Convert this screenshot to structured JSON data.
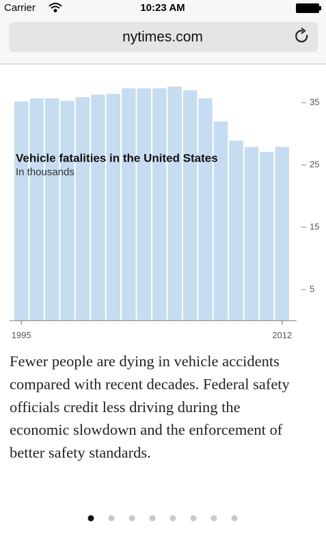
{
  "status_bar": {
    "carrier": "Carrier",
    "time": "10:23 AM"
  },
  "address_bar": {
    "url": "nytimes.com"
  },
  "chart_data": {
    "type": "bar",
    "title": "Vehicle fatalities in the United States",
    "subtitle": "In thousands",
    "categories": [
      "1995",
      null,
      null,
      null,
      null,
      null,
      null,
      null,
      null,
      null,
      null,
      null,
      null,
      null,
      null,
      null,
      null,
      "2012"
    ],
    "values": [
      35.2,
      35.7,
      35.7,
      35.3,
      35.9,
      36.3,
      36.4,
      37.3,
      37.3,
      37.3,
      37.6,
      37.0,
      35.7,
      32.0,
      28.9,
      27.9,
      27.1,
      27.9
    ],
    "color": "#c6dcf0",
    "ylim": [
      0,
      38
    ],
    "yticks": [
      5,
      15,
      25,
      35
    ],
    "grid": false
  },
  "caption": {
    "lines": [
      "Fewer people are dying in vehicle accidents",
      "compared with recent decades. Federal safety",
      "officials credit less driving during the",
      "economic slowdown and the enforcement of",
      "better safety standards."
    ]
  }
}
